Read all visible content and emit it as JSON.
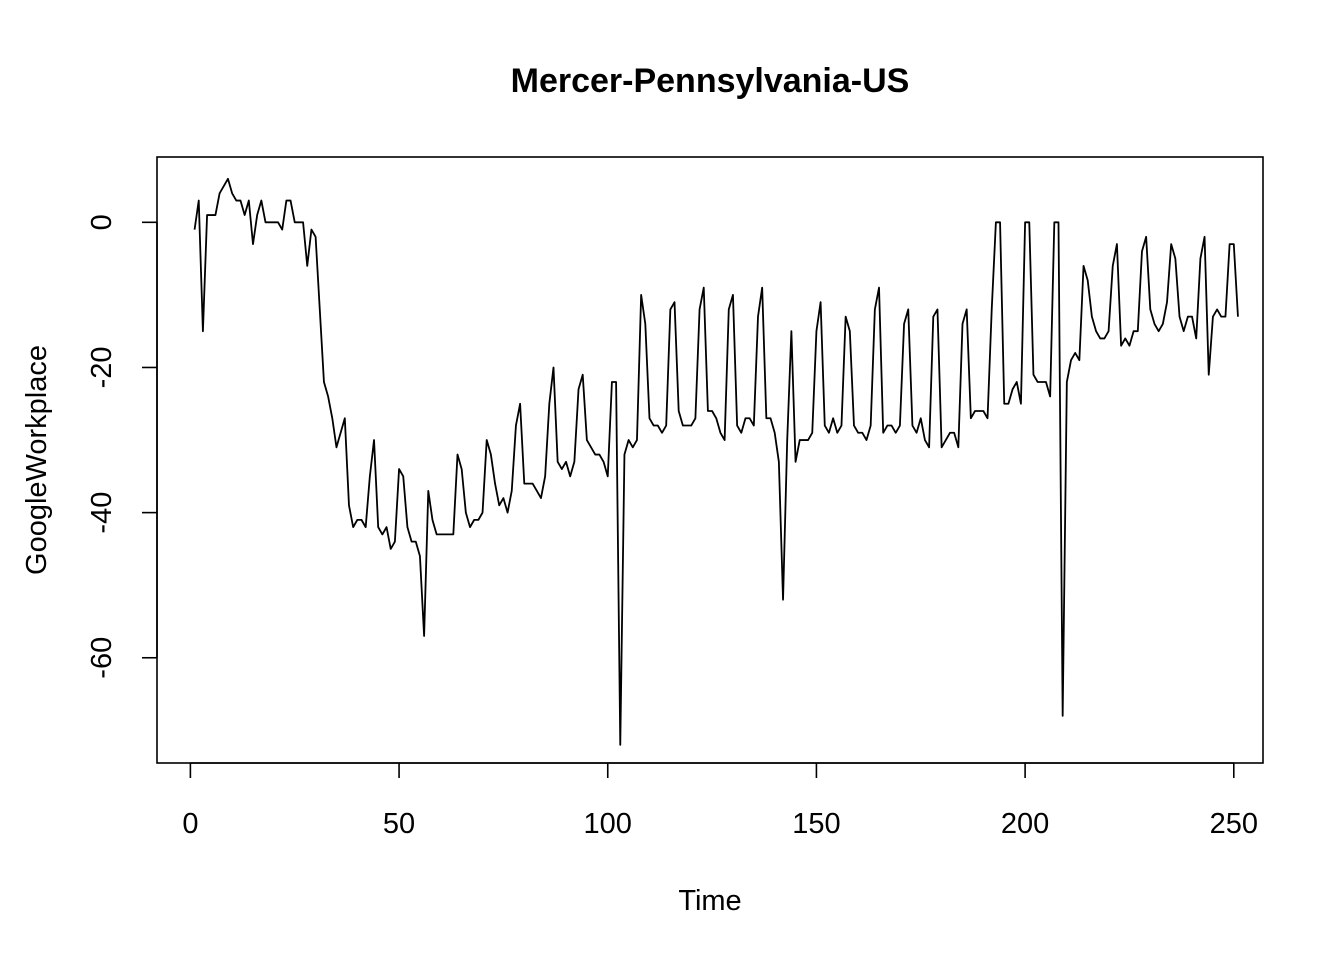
{
  "chart_data": {
    "type": "line",
    "title": "Mercer-Pennsylvania-US",
    "xlabel": "Time",
    "ylabel": "GoogleWorkplace",
    "xlim": [
      -8,
      257
    ],
    "ylim": [
      -74.5,
      9
    ],
    "xticks": [
      0,
      50,
      100,
      150,
      200,
      250
    ],
    "yticks": [
      0,
      -20,
      -40,
      -60
    ],
    "grid": false,
    "legend": "none",
    "line_color": "#000000",
    "series": [
      {
        "x_start": 1,
        "values": [
          -1,
          3,
          -15,
          1,
          1,
          1,
          4,
          5,
          6,
          4,
          3,
          3,
          1,
          3,
          -3,
          1,
          3,
          0,
          0,
          0,
          0,
          -1,
          3,
          3,
          0,
          0,
          0,
          -6,
          -1,
          -2,
          -12,
          -22,
          -24,
          -27,
          -31,
          -29,
          -27,
          -39,
          -42,
          -41,
          -41,
          -42,
          -35,
          -30,
          -42,
          -43,
          -42,
          -45,
          -44,
          -34,
          -35,
          -42,
          -44,
          -44,
          -46,
          -57,
          -37,
          -41,
          -43,
          -43,
          -43,
          -43,
          -43,
          -32,
          -34,
          -40,
          -42,
          -41,
          -41,
          -40,
          -30,
          -32,
          -36,
          -39,
          -38,
          -40,
          -37,
          -28,
          -25,
          -36,
          -36,
          -36,
          -37,
          -38,
          -35,
          -25,
          -20,
          -33,
          -34,
          -33,
          -35,
          -33,
          -23,
          -21,
          -30,
          -31,
          -32,
          -32,
          -33,
          -35,
          -22,
          -22,
          -72,
          -32,
          -30,
          -31,
          -30,
          -10,
          -14,
          -27,
          -28,
          -28,
          -29,
          -28,
          -12,
          -11,
          -26,
          -28,
          -28,
          -28,
          -27,
          -12,
          -9,
          -26,
          -26,
          -27,
          -29,
          -30,
          -12,
          -10,
          -28,
          -29,
          -27,
          -27,
          -28,
          -13,
          -9,
          -27,
          -27,
          -29,
          -33,
          -52,
          -30,
          -15,
          -33,
          -30,
          -30,
          -30,
          -29,
          -15,
          -11,
          -28,
          -29,
          -27,
          -29,
          -28,
          -13,
          -15,
          -28,
          -29,
          -29,
          -30,
          -28,
          -12,
          -9,
          -29,
          -28,
          -28,
          -29,
          -28,
          -14,
          -12,
          -28,
          -29,
          -27,
          -30,
          -31,
          -13,
          -12,
          -31,
          -30,
          -29,
          -29,
          -31,
          -14,
          -12,
          -27,
          -26,
          -26,
          -26,
          -27,
          -12,
          0,
          0,
          -25,
          -25,
          -23,
          -22,
          -25,
          0,
          0,
          -21,
          -22,
          -22,
          -22,
          -24,
          0,
          0,
          -68,
          -22,
          -19,
          -18,
          -19,
          -6,
          -8,
          -13,
          -15,
          -16,
          -16,
          -15,
          -6,
          -3,
          -17,
          -16,
          -17,
          -15,
          -15,
          -4,
          -2,
          -12,
          -14,
          -15,
          -14,
          -11,
          -3,
          -5,
          -13,
          -15,
          -13,
          -13,
          -16,
          -5,
          -2,
          -21,
          -13,
          -12,
          -13,
          -13,
          -3,
          -3,
          -13
        ]
      }
    ]
  }
}
